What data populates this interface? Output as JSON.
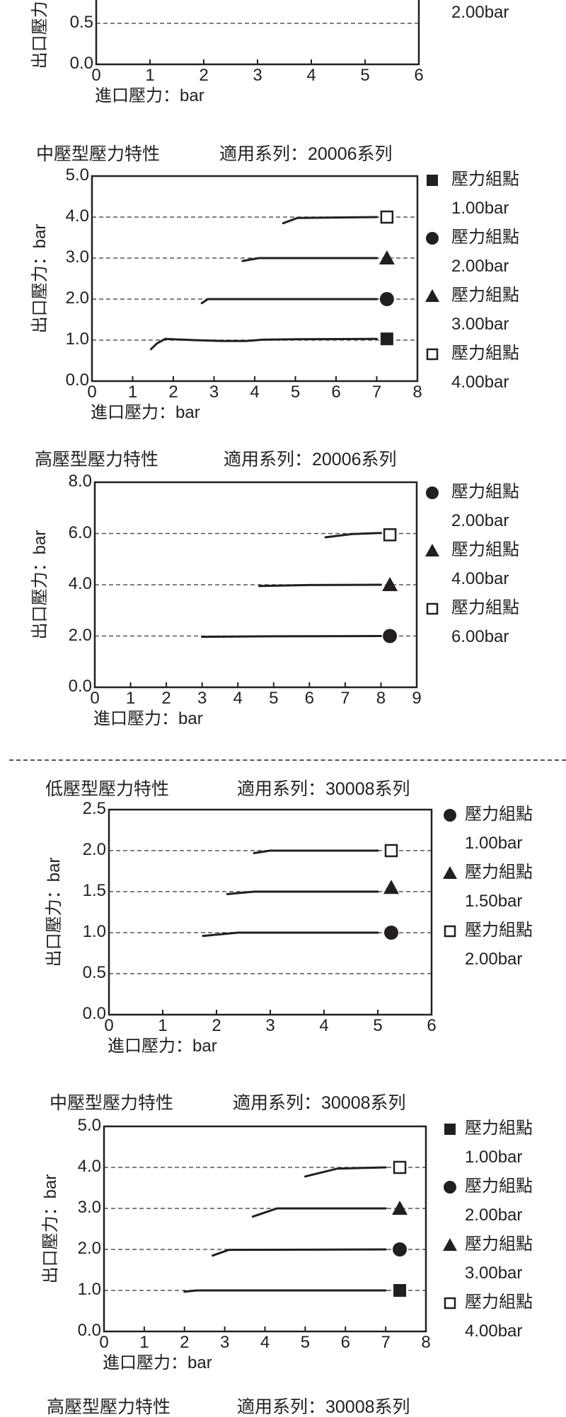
{
  "colors": {
    "ink": "#231f20",
    "grid": "#555555",
    "background": "#ffffff"
  },
  "chart_data": [
    {
      "type": "line",
      "title": "",
      "series_label": "",
      "xlabel": "進口壓力：bar",
      "ylabel": "出口壓力：bar",
      "xlim": [
        0,
        6
      ],
      "xticks": [
        "0",
        "1",
        "2",
        "3",
        "4",
        "5",
        "6"
      ],
      "yticks": [
        {
          "v": 0,
          "label": "0.0"
        },
        {
          "v": 0.5,
          "label": "0.5"
        }
      ],
      "legend": [
        {
          "marker": "none",
          "label": "",
          "value": "2.00bar"
        }
      ],
      "series": []
    },
    {
      "type": "line",
      "title": "中壓型壓力特性",
      "series_label": "適用系列：20006系列",
      "xlabel": "進口壓力：bar",
      "ylabel": "出口壓力：bar",
      "xlim": [
        0,
        8
      ],
      "ylim": [
        0,
        5
      ],
      "xticks": [
        "0",
        "1",
        "2",
        "3",
        "4",
        "5",
        "6",
        "7",
        "8"
      ],
      "yticks": [
        {
          "v": 0,
          "label": "0.0"
        },
        {
          "v": 1,
          "label": "1.0"
        },
        {
          "v": 2,
          "label": "2.0"
        },
        {
          "v": 3,
          "label": "3.0"
        },
        {
          "v": 4,
          "label": "4.0"
        },
        {
          "v": 5,
          "label": "5.0"
        }
      ],
      "legend": [
        {
          "marker": "square-filled",
          "label": "壓力組點",
          "value": "1.00bar"
        },
        {
          "marker": "circle-filled",
          "label": "壓力組點",
          "value": "2.00bar"
        },
        {
          "marker": "triangle-filled",
          "label": "壓力組點",
          "value": "3.00bar"
        },
        {
          "marker": "square-open",
          "label": "壓力組點",
          "value": "4.00bar"
        }
      ],
      "series": [
        {
          "name": "1.00bar",
          "marker": "square-filled",
          "marker_at": [
            7.25,
            1.03
          ],
          "points": [
            [
              1.45,
              0.78
            ],
            [
              1.6,
              0.92
            ],
            [
              1.8,
              1.03
            ],
            [
              2.5,
              1.0
            ],
            [
              3.2,
              0.98
            ],
            [
              3.8,
              0.98
            ],
            [
              4.2,
              1.01
            ],
            [
              5,
              1.02
            ],
            [
              7,
              1.03
            ]
          ]
        },
        {
          "name": "2.00bar",
          "marker": "circle-filled",
          "marker_at": [
            7.25,
            2.0
          ],
          "points": [
            [
              2.7,
              1.9
            ],
            [
              2.85,
              2.0
            ],
            [
              7,
              2.0
            ]
          ]
        },
        {
          "name": "3.00bar",
          "marker": "triangle-filled",
          "marker_at": [
            7.25,
            3.0
          ],
          "points": [
            [
              3.7,
              2.93
            ],
            [
              4.1,
              3.0
            ],
            [
              7,
              3.0
            ]
          ]
        },
        {
          "name": "4.00bar",
          "marker": "square-open",
          "marker_at": [
            7.25,
            4.0
          ],
          "points": [
            [
              4.7,
              3.85
            ],
            [
              5.05,
              3.98
            ],
            [
              7,
              4.0
            ]
          ]
        }
      ]
    },
    {
      "type": "line",
      "title": "高壓型壓力特性",
      "series_label": "適用系列：20006系列",
      "xlabel": "進口壓力：bar",
      "ylabel": "出口壓力：bar",
      "xlim": [
        0,
        9
      ],
      "ylim": [
        0,
        8
      ],
      "xticks": [
        "0",
        "1",
        "2",
        "3",
        "4",
        "5",
        "6",
        "7",
        "8",
        "9"
      ],
      "yticks": [
        {
          "v": 0,
          "label": "0.0"
        },
        {
          "v": 2,
          "label": "2.0"
        },
        {
          "v": 4,
          "label": "4.0"
        },
        {
          "v": 6,
          "label": "6.0"
        },
        {
          "v": 8,
          "label": "8.0"
        }
      ],
      "legend": [
        {
          "marker": "circle-filled",
          "label": "壓力組點",
          "value": "2.00bar"
        },
        {
          "marker": "triangle-filled",
          "label": "壓力組點",
          "value": "4.00bar"
        },
        {
          "marker": "square-open",
          "label": "壓力組點",
          "value": "6.00bar"
        }
      ],
      "series": [
        {
          "name": "2.00bar",
          "marker": "circle-filled",
          "marker_at": [
            8.25,
            2.0
          ],
          "points": [
            [
              3,
              1.97
            ],
            [
              5,
              1.99
            ],
            [
              8,
              2.0
            ]
          ]
        },
        {
          "name": "4.00bar",
          "marker": "triangle-filled",
          "marker_at": [
            8.25,
            4.0
          ],
          "points": [
            [
              4.6,
              3.95
            ],
            [
              6,
              3.99
            ],
            [
              8,
              4.0
            ]
          ]
        },
        {
          "name": "6.00bar",
          "marker": "square-open",
          "marker_at": [
            8.25,
            5.95
          ],
          "points": [
            [
              6.45,
              5.85
            ],
            [
              7.2,
              5.98
            ],
            [
              8,
              6.02
            ]
          ]
        }
      ]
    },
    {
      "type": "line",
      "title": "低壓型壓力特性",
      "series_label": "適用系列：30008系列",
      "xlabel": "進口壓力：bar",
      "ylabel": "出口壓力：bar",
      "xlim": [
        0,
        6
      ],
      "ylim": [
        0,
        2.5
      ],
      "xticks": [
        "0",
        "1",
        "2",
        "3",
        "4",
        "5",
        "6"
      ],
      "yticks": [
        {
          "v": 0,
          "label": "0.0"
        },
        {
          "v": 0.5,
          "label": "0.5"
        },
        {
          "v": 1,
          "label": "1.0"
        },
        {
          "v": 1.5,
          "label": "1.5"
        },
        {
          "v": 2,
          "label": "2.0"
        },
        {
          "v": 2.5,
          "label": "2.5"
        }
      ],
      "legend": [
        {
          "marker": "circle-filled",
          "label": "壓力組點",
          "value": "1.00bar"
        },
        {
          "marker": "triangle-filled",
          "label": "壓力組點",
          "value": "1.50bar"
        },
        {
          "marker": "square-open",
          "label": "壓力組點",
          "value": "2.00bar"
        }
      ],
      "series": [
        {
          "name": "1.00bar",
          "marker": "circle-filled",
          "marker_at": [
            5.25,
            1.0
          ],
          "points": [
            [
              1.75,
              0.96
            ],
            [
              2.4,
              1.0
            ],
            [
              5,
              1.0
            ]
          ]
        },
        {
          "name": "1.50bar",
          "marker": "triangle-filled",
          "marker_at": [
            5.25,
            1.55
          ],
          "points": [
            [
              2.2,
              1.47
            ],
            [
              2.7,
              1.5
            ],
            [
              5,
              1.5
            ]
          ]
        },
        {
          "name": "2.00bar",
          "marker": "square-open",
          "marker_at": [
            5.25,
            2.0
          ],
          "points": [
            [
              2.7,
              1.97
            ],
            [
              3.0,
              2.0
            ],
            [
              5,
              2.0
            ]
          ]
        }
      ]
    },
    {
      "type": "line",
      "title": "中壓型壓力特性",
      "series_label": "適用系列：30008系列",
      "xlabel": "進口壓力：bar",
      "ylabel": "出口壓力：bar",
      "xlim": [
        0,
        8
      ],
      "ylim": [
        0,
        5
      ],
      "xticks": [
        "0",
        "1",
        "2",
        "3",
        "4",
        "5",
        "6",
        "7",
        "8"
      ],
      "yticks": [
        {
          "v": 0,
          "label": "0.0"
        },
        {
          "v": 1,
          "label": "1.0"
        },
        {
          "v": 2,
          "label": "2.0"
        },
        {
          "v": 3,
          "label": "3.0"
        },
        {
          "v": 4,
          "label": "4.0"
        },
        {
          "v": 5,
          "label": "5.0"
        }
      ],
      "legend": [
        {
          "marker": "square-filled",
          "label": "壓力組點",
          "value": "1.00bar"
        },
        {
          "marker": "circle-filled",
          "label": "壓力組點",
          "value": "2.00bar"
        },
        {
          "marker": "triangle-filled",
          "label": "壓力組點",
          "value": "3.00bar"
        },
        {
          "marker": "square-open",
          "label": "壓力組點",
          "value": "4.00bar"
        }
      ],
      "series": [
        {
          "name": "1.00bar",
          "marker": "square-filled",
          "marker_at": [
            7.35,
            1.0
          ],
          "points": [
            [
              2,
              0.97
            ],
            [
              2.3,
              1.0
            ],
            [
              7,
              1.0
            ]
          ]
        },
        {
          "name": "2.00bar",
          "marker": "circle-filled",
          "marker_at": [
            7.35,
            2.0
          ],
          "points": [
            [
              2.7,
              1.85
            ],
            [
              3.1,
              1.99
            ],
            [
              7,
              2.0
            ]
          ]
        },
        {
          "name": "3.00bar",
          "marker": "triangle-filled",
          "marker_at": [
            7.35,
            3.0
          ],
          "points": [
            [
              3.7,
              2.8
            ],
            [
              4.3,
              3.0
            ],
            [
              7,
              3.0
            ]
          ]
        },
        {
          "name": "4.00bar",
          "marker": "square-open",
          "marker_at": [
            7.35,
            4.0
          ],
          "points": [
            [
              5,
              3.78
            ],
            [
              5.8,
              3.97
            ],
            [
              7,
              4.0
            ]
          ]
        }
      ]
    },
    {
      "type": "line",
      "title": "高壓型壓力特性",
      "series_label": "適用系列：30008系列",
      "xlabel": "",
      "ylabel": "",
      "xticks": [],
      "yticks": [],
      "legend": [],
      "series": []
    }
  ]
}
